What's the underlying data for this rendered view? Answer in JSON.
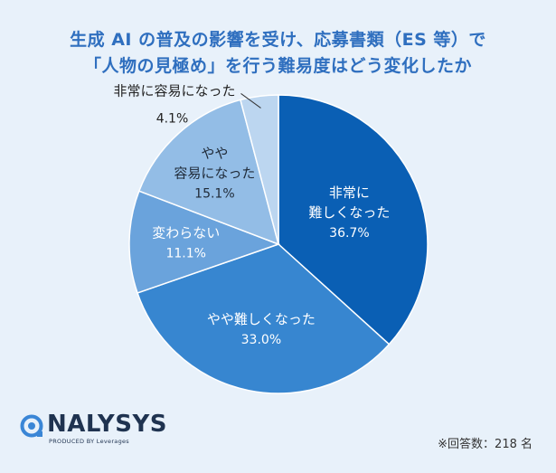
{
  "header": {
    "title_line1": "生成 AI の普及の影響を受け、応募書類（ES 等）で",
    "title_line2": "「人物の見極め」を行う難易度はどう変化したか"
  },
  "chart_data": {
    "type": "pie",
    "slices": [
      {
        "label_lines": [
          "非常に",
          "難しくなった"
        ],
        "value": 36.7,
        "value_text": "36.7%",
        "color": "#0a5fb4",
        "text_color": "#ffffff"
      },
      {
        "label_lines": [
          "やや難しくなった"
        ],
        "value": 33.0,
        "value_text": "33.0%",
        "color": "#3786d0",
        "text_color": "#ffffff"
      },
      {
        "label_lines": [
          "変わらない"
        ],
        "value": 11.1,
        "value_text": "11.1%",
        "color": "#6aa3dc",
        "text_color": "#ffffff"
      },
      {
        "label_lines": [
          "やや",
          "容易になった"
        ],
        "value": 15.1,
        "value_text": "15.1%",
        "color": "#93bde6",
        "text_color": "#1f2a38"
      },
      {
        "label_lines": [
          "非常に容易になった"
        ],
        "value": 4.1,
        "value_text": "4.1%",
        "color": "#bcd6f0",
        "text_color": "#1f2a38"
      }
    ]
  },
  "logo": {
    "name": "NALYSYS",
    "tagline": "PRODUCED BY Leverages"
  },
  "footnote": "※回答数：218 名"
}
